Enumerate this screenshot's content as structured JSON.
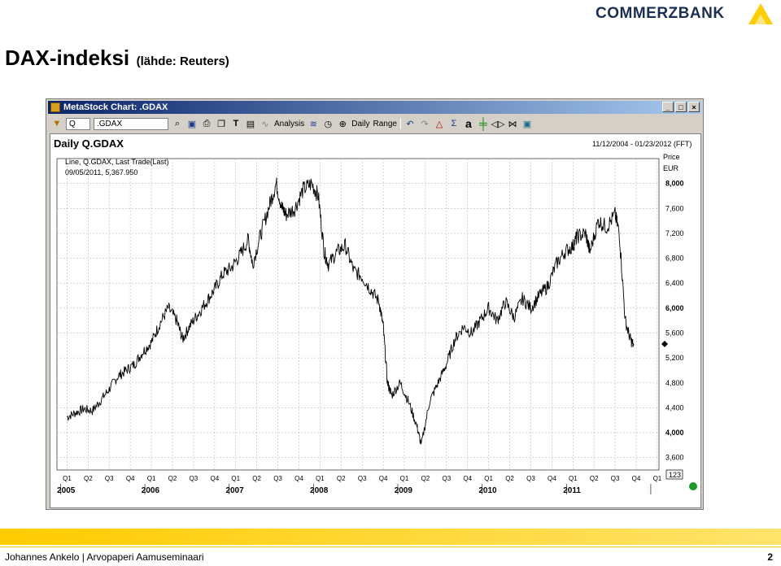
{
  "brand": {
    "name": "COMMERZBANK",
    "logo_color": "#ffcc00"
  },
  "slide": {
    "title": "DAX-indeksi",
    "subtitle": "(lähde: Reuters)",
    "footer_left": "Johannes Ankelo  |  Arvopaperi Aamuseminaari",
    "page_number": "2"
  },
  "window": {
    "title": "MetaStock Chart: .GDAX",
    "toolbar": {
      "period": "Q",
      "symbol": ".GDAX",
      "analysis": "Analysis",
      "periodicity": "Daily",
      "range": "Range"
    }
  },
  "chart_data": {
    "type": "line",
    "title": "Daily Q.GDAX",
    "date_range": "11/12/2004 - 01/23/2012 (FFT)",
    "legend_line1": "Line, Q.GDAX, Last Trade(Last)",
    "legend_line2": "09/05/2011, 5,367.950",
    "ylabel": "Price",
    "yunit": "EUR",
    "ylim": [
      3400,
      8400
    ],
    "y_ticks": [
      "8,000",
      "7,600",
      "7,200",
      "6,800",
      "6,400",
      "6,000",
      "5,600",
      "5,200",
      "4,800",
      "4,400",
      "4,000",
      "3,600"
    ],
    "quarter_labels": [
      "Q1",
      "Q2",
      "Q3",
      "Q4",
      "Q1",
      "Q2",
      "Q3",
      "Q4",
      "Q1",
      "Q2",
      "Q3",
      "Q4",
      "Q1",
      "Q2",
      "Q3",
      "Q4",
      "Q1",
      "Q2",
      "Q3",
      "Q4",
      "Q1",
      "Q2",
      "Q3",
      "Q4",
      "Q1",
      "Q2",
      "Q3",
      "Q4",
      "Q1"
    ],
    "year_labels": [
      "2005",
      "2006",
      "2007",
      "2008",
      "2009",
      "2010",
      "2011"
    ],
    "grid": true,
    "zoom_label": "123",
    "series": [
      {
        "color": "#000000",
        "x": [
          2005.0,
          2005.1,
          2005.2,
          2005.3,
          2005.4,
          2005.5,
          2005.6,
          2005.7,
          2005.8,
          2005.9,
          2006.0,
          2006.1,
          2006.2,
          2006.3,
          2006.37,
          2006.45,
          2006.55,
          2006.65,
          2006.75,
          2006.85,
          2006.95,
          2007.05,
          2007.15,
          2007.2,
          2007.3,
          2007.4,
          2007.48,
          2007.55,
          2007.6,
          2007.7,
          2007.8,
          2007.9,
          2007.98,
          2008.05,
          2008.1,
          2008.2,
          2008.3,
          2008.4,
          2008.5,
          2008.6,
          2008.7,
          2008.75,
          2008.8,
          2008.85,
          2008.95,
          2009.05,
          2009.15,
          2009.2,
          2009.3,
          2009.4,
          2009.5,
          2009.6,
          2009.7,
          2009.8,
          2009.9,
          2010.0,
          2010.1,
          2010.2,
          2010.3,
          2010.4,
          2010.5,
          2010.6,
          2010.7,
          2010.8,
          2010.9,
          2011.0,
          2011.05,
          2011.15,
          2011.2,
          2011.3,
          2011.4,
          2011.5,
          2011.55,
          2011.62,
          2011.68,
          2011.72
        ],
        "y": [
          4250,
          4320,
          4380,
          4350,
          4520,
          4700,
          4900,
          5000,
          5100,
          5300,
          5450,
          5750,
          6000,
          5800,
          5500,
          5700,
          5900,
          6100,
          6300,
          6550,
          6650,
          6850,
          7100,
          6700,
          7200,
          7650,
          8000,
          7600,
          7500,
          7600,
          7900,
          8000,
          7800,
          6900,
          6700,
          6900,
          7000,
          6600,
          6500,
          6300,
          6100,
          5700,
          4800,
          4600,
          4800,
          4500,
          4100,
          3800,
          4500,
          4800,
          5100,
          5500,
          5700,
          5600,
          5800,
          6000,
          5800,
          6100,
          5850,
          6150,
          6000,
          6200,
          6350,
          6700,
          6900,
          7000,
          7150,
          7200,
          6900,
          7400,
          7300,
          7500,
          7200,
          5800,
          5500,
          5400
        ]
      }
    ]
  }
}
